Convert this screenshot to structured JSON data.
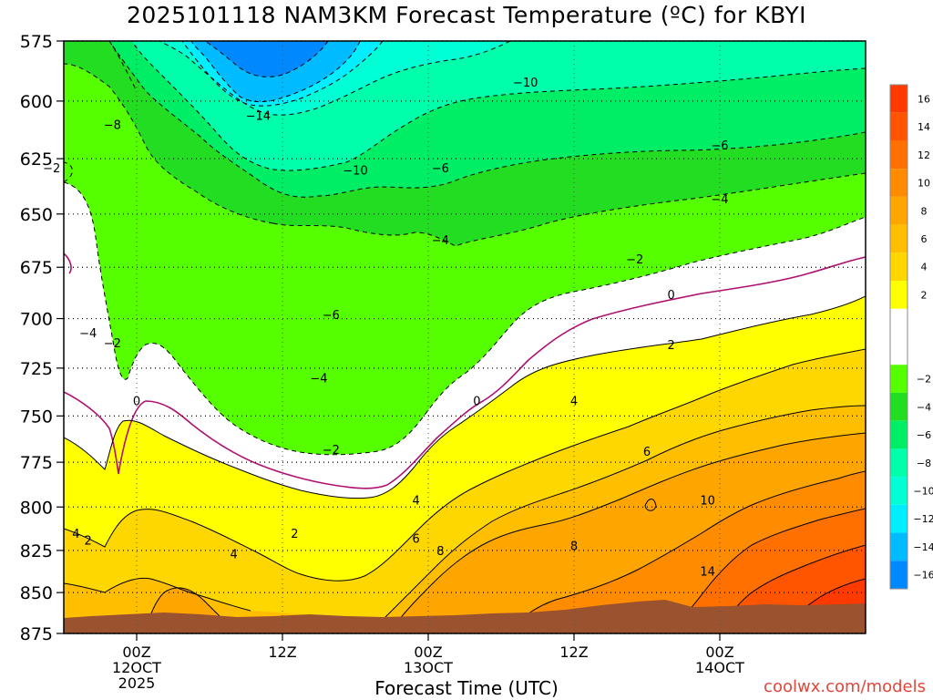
{
  "chart_data": {
    "type": "heatmap",
    "title": "2025101118 NAM3KM Forecast Temperature (ºC) for KBYI",
    "xlabel": "Forecast Time (UTC)",
    "credit": "coolwx.com/models",
    "y_axis": {
      "ticks": [
        575,
        600,
        625,
        650,
        675,
        700,
        725,
        750,
        775,
        800,
        825,
        850,
        875
      ],
      "range": [
        875,
        575
      ],
      "scale": "log-pressure"
    },
    "x_axis": {
      "range": [
        "2025-10-11T18:00Z",
        "2025-10-14T12:00Z"
      ],
      "ticks": [
        {
          "time": "2025-10-12T00:00Z",
          "lines": [
            "00Z",
            "12OCT",
            "2025"
          ]
        },
        {
          "time": "2025-10-12T12:00Z",
          "lines": [
            "12Z"
          ]
        },
        {
          "time": "2025-10-13T00:00Z",
          "lines": [
            "00Z",
            "13OCT"
          ]
        },
        {
          "time": "2025-10-13T12:00Z",
          "lines": [
            "12Z"
          ]
        },
        {
          "time": "2025-10-14T00:00Z",
          "lines": [
            "00Z",
            "14OCT"
          ]
        }
      ]
    },
    "grid": true,
    "colorbar": {
      "position": "right",
      "labels": [
        16,
        14,
        12,
        10,
        8,
        6,
        4,
        2,
        -2,
        -4,
        -6,
        -8,
        -10,
        -12,
        -14,
        -16
      ],
      "bins": [
        {
          "range": [
            16,
            18
          ],
          "color": "#ff3a00"
        },
        {
          "range": [
            14,
            16
          ],
          "color": "#ff5500"
        },
        {
          "range": [
            12,
            14
          ],
          "color": "#ff7000"
        },
        {
          "range": [
            10,
            12
          ],
          "color": "#ff8c00"
        },
        {
          "range": [
            8,
            10
          ],
          "color": "#ffa500"
        },
        {
          "range": [
            6,
            8
          ],
          "color": "#ffbf00"
        },
        {
          "range": [
            4,
            6
          ],
          "color": "#ffd700"
        },
        {
          "range": [
            2,
            4
          ],
          "color": "#ffff00"
        },
        {
          "range": [
            -2,
            2
          ],
          "color": "#ffffff"
        },
        {
          "range": [
            -4,
            -2
          ],
          "color": "#55ff00"
        },
        {
          "range": [
            -6,
            -4
          ],
          "color": "#22dd22"
        },
        {
          "range": [
            -8,
            -6
          ],
          "color": "#00ee66"
        },
        {
          "range": [
            -10,
            -8
          ],
          "color": "#00ffaa"
        },
        {
          "range": [
            -12,
            -10
          ],
          "color": "#00ffd5"
        },
        {
          "range": [
            -14,
            -12
          ],
          "color": "#00eeff"
        },
        {
          "range": [
            -16,
            -14
          ],
          "color": "#00bbff"
        },
        {
          "range": [
            -18,
            -16
          ],
          "color": "#0088ff"
        }
      ]
    },
    "contour_labels": [
      {
        "value": "-14",
        "time": "2025-10-12T10:00Z",
        "pressure": 606
      },
      {
        "value": "-10",
        "time": "2025-10-13T08:00Z",
        "pressure": 592
      },
      {
        "value": "-10",
        "time": "2025-10-12T18:00Z",
        "pressure": 630
      },
      {
        "value": "-8",
        "time": "2025-10-11T22:00Z",
        "pressure": 610
      },
      {
        "value": "-6",
        "time": "2025-10-13T01:00Z",
        "pressure": 629
      },
      {
        "value": "-6",
        "time": "2025-10-14T00:00Z",
        "pressure": 619
      },
      {
        "value": "-4",
        "time": "2025-10-14T00:00Z",
        "pressure": 643
      },
      {
        "value": "-4",
        "time": "2025-10-13T01:00Z",
        "pressure": 662
      },
      {
        "value": "-6",
        "time": "2025-10-12T16:00Z",
        "pressure": 698
      },
      {
        "value": "-4",
        "time": "2025-10-12T15:00Z",
        "pressure": 730
      },
      {
        "value": "-4",
        "time": "2025-10-11T20:00Z",
        "pressure": 707
      },
      {
        "value": "-2",
        "time": "2025-10-11T17:00Z",
        "pressure": 629
      },
      {
        "value": "-2",
        "time": "2025-10-11T22:00Z",
        "pressure": 712
      },
      {
        "value": "-2",
        "time": "2025-10-12T16:00Z",
        "pressure": 768
      },
      {
        "value": "-2",
        "time": "2025-10-13T17:00Z",
        "pressure": 671
      },
      {
        "value": "0",
        "time": "2025-10-12T00:00Z",
        "pressure": 742
      },
      {
        "value": "0",
        "time": "2025-10-13T04:00Z",
        "pressure": 742
      },
      {
        "value": "0",
        "time": "2025-10-13T20:00Z",
        "pressure": 688
      },
      {
        "value": "2",
        "time": "2025-10-11T20:00Z",
        "pressure": 819
      },
      {
        "value": "2",
        "time": "2025-10-12T13:00Z",
        "pressure": 815
      },
      {
        "value": "2",
        "time": "2025-10-13T20:00Z",
        "pressure": 713
      },
      {
        "value": "4",
        "time": "2025-10-11T19:00Z",
        "pressure": 815
      },
      {
        "value": "4",
        "time": "2025-10-12T08:00Z",
        "pressure": 827
      },
      {
        "value": "4",
        "time": "2025-10-12T23:00Z",
        "pressure": 796
      },
      {
        "value": "4",
        "time": "2025-10-13T12:00Z",
        "pressure": 742
      },
      {
        "value": "6",
        "time": "2025-10-12T23:00Z",
        "pressure": 818
      },
      {
        "value": "6",
        "time": "2025-10-13T18:00Z",
        "pressure": 769
      },
      {
        "value": "8",
        "time": "2025-10-13T01:00Z",
        "pressure": 825
      },
      {
        "value": "8",
        "time": "2025-10-13T12:00Z",
        "pressure": 822
      },
      {
        "value": "10",
        "time": "2025-10-13T23:00Z",
        "pressure": 796
      },
      {
        "value": "14",
        "time": "2025-10-13T23:00Z",
        "pressure": 837
      }
    ]
  }
}
